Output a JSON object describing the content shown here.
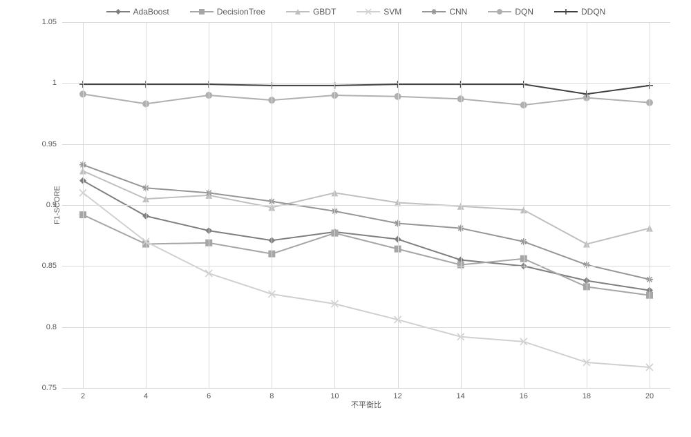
{
  "chart": {
    "type": "line",
    "ylabel": "F1-SCORE",
    "xlabel": "不平衡比",
    "ylim": [
      0.75,
      1.05
    ],
    "ytick_step": 0.05,
    "yticks": [
      0.75,
      0.8,
      0.85,
      0.9,
      0.95,
      1,
      1.05
    ],
    "xlim": [
      2,
      20
    ],
    "xticks": [
      2,
      4,
      6,
      8,
      10,
      12,
      14,
      16,
      18,
      20
    ],
    "background_color": "#ffffff",
    "grid_color": "#d9d9d9",
    "label_fontsize": 11,
    "tick_fontsize": 11,
    "legend_fontsize": 12,
    "legend_position": "top-center",
    "line_width": 2,
    "marker_size": 5,
    "series": [
      {
        "name": "AdaBoost",
        "color": "#7f7f7f",
        "marker": "diamond",
        "values": [
          0.92,
          0.891,
          0.879,
          0.871,
          0.878,
          0.872,
          0.855,
          0.85,
          0.838,
          0.83
        ]
      },
      {
        "name": "DecisionTree",
        "color": "#a6a6a6",
        "marker": "square",
        "values": [
          0.892,
          0.868,
          0.869,
          0.86,
          0.877,
          0.864,
          0.851,
          0.856,
          0.833,
          0.826
        ]
      },
      {
        "name": "GBDT",
        "color": "#bfbfbf",
        "marker": "triangle",
        "values": [
          0.928,
          0.905,
          0.908,
          0.898,
          0.91,
          0.902,
          0.899,
          0.896,
          0.868,
          0.881
        ]
      },
      {
        "name": "SVM",
        "color": "#d0d0d0",
        "marker": "x",
        "values": [
          0.91,
          0.87,
          0.844,
          0.827,
          0.819,
          0.806,
          0.792,
          0.788,
          0.771,
          0.767
        ]
      },
      {
        "name": "CNN",
        "color": "#969696",
        "marker": "asterisk",
        "values": [
          0.933,
          0.914,
          0.91,
          0.903,
          0.895,
          0.885,
          0.881,
          0.87,
          0.851,
          0.839
        ]
      },
      {
        "name": "DQN",
        "color": "#b0b0b0",
        "marker": "circle",
        "values": [
          0.991,
          0.983,
          0.99,
          0.986,
          0.99,
          0.989,
          0.987,
          0.982,
          0.988,
          0.984
        ]
      },
      {
        "name": "DDQN",
        "color": "#404040",
        "marker": "plus",
        "values": [
          0.999,
          0.999,
          0.999,
          0.998,
          0.998,
          0.999,
          0.999,
          0.999,
          0.991,
          0.998
        ]
      }
    ]
  }
}
